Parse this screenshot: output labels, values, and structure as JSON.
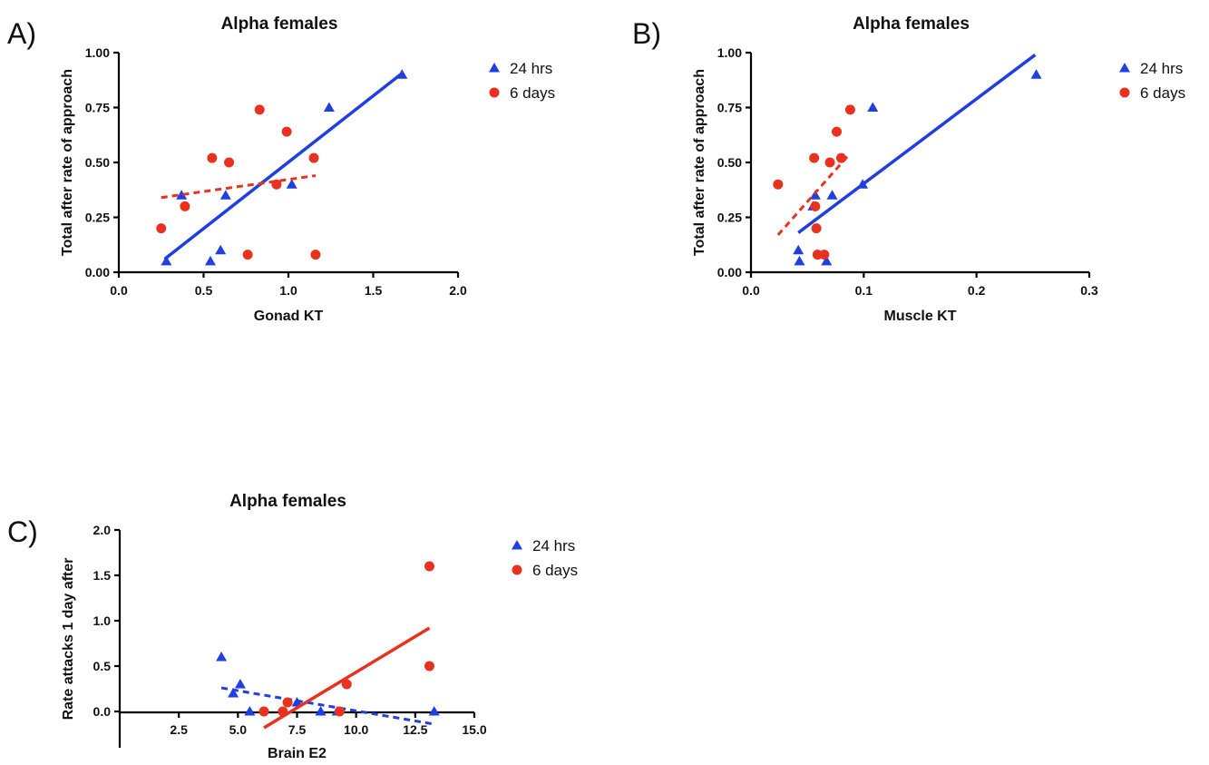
{
  "colors": {
    "series_24hrs": "#1f3fe0",
    "series_6days": "#e8311f",
    "axis": "#000000"
  },
  "chart_data": [
    {
      "panel_letter": "A)",
      "type": "scatter",
      "title": "Alpha females",
      "xlabel": "Gonad KT",
      "ylabel": "Total after rate of approach",
      "xlim": [
        0.0,
        2.0
      ],
      "ylim": [
        0.0,
        1.0
      ],
      "xticks": [
        0.0,
        0.5,
        1.0,
        1.5,
        2.0
      ],
      "xtick_labels": [
        "0.0",
        "0.5",
        "1.0",
        "1.5",
        "2.0"
      ],
      "yticks": [
        0.0,
        0.25,
        0.5,
        0.75,
        1.0
      ],
      "ytick_labels": [
        "0.00",
        "0.25",
        "0.50",
        "0.75",
        "1.00"
      ],
      "grid": false,
      "legend_position": "top-right",
      "series": [
        {
          "name": "24 hrs",
          "marker": "triangle",
          "color": "#1f3fe0",
          "points": [
            [
              0.28,
              0.05
            ],
            [
              0.37,
              0.35
            ],
            [
              0.54,
              0.05
            ],
            [
              0.6,
              0.1
            ],
            [
              0.63,
              0.35
            ],
            [
              1.02,
              0.4
            ],
            [
              1.24,
              0.75
            ],
            [
              1.67,
              0.9
            ]
          ],
          "fit": {
            "from": [
              0.27,
              0.06
            ],
            "to": [
              1.66,
              0.9
            ],
            "style": "solid"
          }
        },
        {
          "name": "6 days",
          "marker": "circle",
          "color": "#e8311f",
          "points": [
            [
              0.25,
              0.2
            ],
            [
              0.39,
              0.3
            ],
            [
              0.55,
              0.52
            ],
            [
              0.65,
              0.5
            ],
            [
              0.76,
              0.08
            ],
            [
              0.83,
              0.74
            ],
            [
              0.93,
              0.4
            ],
            [
              0.99,
              0.64
            ],
            [
              1.15,
              0.52
            ],
            [
              1.16,
              0.08
            ]
          ],
          "fit": {
            "from": [
              0.25,
              0.34
            ],
            "to": [
              1.16,
              0.44
            ],
            "style": "dashed"
          }
        }
      ]
    },
    {
      "panel_letter": "B)",
      "type": "scatter",
      "title": "Alpha females",
      "xlabel": "Muscle KT",
      "ylabel": "Total after rate of approach",
      "xlim": [
        0.0,
        0.3
      ],
      "ylim": [
        0.0,
        1.0
      ],
      "xticks": [
        0.0,
        0.1,
        0.2,
        0.3
      ],
      "xtick_labels": [
        "0.0",
        "0.1",
        "0.2",
        "0.3"
      ],
      "yticks": [
        0.0,
        0.25,
        0.5,
        0.75,
        1.0
      ],
      "ytick_labels": [
        "0.00",
        "0.25",
        "0.50",
        "0.75",
        "1.00"
      ],
      "grid": false,
      "legend_position": "top-right",
      "series": [
        {
          "name": "24 hrs",
          "marker": "triangle",
          "color": "#1f3fe0",
          "points": [
            [
              0.042,
              0.1
            ],
            [
              0.043,
              0.05
            ],
            [
              0.055,
              0.3
            ],
            [
              0.057,
              0.35
            ],
            [
              0.067,
              0.05
            ],
            [
              0.072,
              0.35
            ],
            [
              0.099,
              0.4
            ],
            [
              0.108,
              0.75
            ],
            [
              0.253,
              0.9
            ]
          ],
          "fit": {
            "from": [
              0.042,
              0.18
            ],
            "to": [
              0.252,
              0.99
            ],
            "style": "solid"
          }
        },
        {
          "name": "6 days",
          "marker": "circle",
          "color": "#e8311f",
          "points": [
            [
              0.024,
              0.4
            ],
            [
              0.056,
              0.52
            ],
            [
              0.057,
              0.3
            ],
            [
              0.058,
              0.2
            ],
            [
              0.059,
              0.08
            ],
            [
              0.065,
              0.08
            ],
            [
              0.07,
              0.5
            ],
            [
              0.076,
              0.64
            ],
            [
              0.08,
              0.52
            ],
            [
              0.088,
              0.74
            ]
          ],
          "fit": {
            "from": [
              0.024,
              0.17
            ],
            "to": [
              0.086,
              0.53
            ],
            "style": "dashed"
          }
        }
      ]
    },
    {
      "panel_letter": "C)",
      "type": "scatter",
      "title": "Alpha females",
      "xlabel": "Brain E2",
      "ylabel": "Rate attacks 1 day after",
      "xlim": [
        0.0,
        15.0
      ],
      "ylim": [
        -0.4,
        2.0
      ],
      "axis_origin": [
        0.0,
        0.0
      ],
      "xticks": [
        2.5,
        5.0,
        7.5,
        10.0,
        12.5,
        15.0
      ],
      "xtick_labels": [
        "2.5",
        "5.0",
        "7.5",
        "10.0",
        "12.5",
        "15.0"
      ],
      "yticks": [
        0.0,
        0.5,
        1.0,
        1.5,
        2.0
      ],
      "ytick_labels": [
        "0.0",
        "0.5",
        "1.0",
        "1.5",
        "2.0"
      ],
      "grid": false,
      "legend_position": "top-right",
      "series": [
        {
          "name": "24 hrs",
          "marker": "triangle",
          "color": "#1f3fe0",
          "points": [
            [
              4.3,
              0.6
            ],
            [
              4.8,
              0.2
            ],
            [
              5.1,
              0.3
            ],
            [
              5.5,
              0.0
            ],
            [
              7.5,
              0.1
            ],
            [
              8.5,
              0.0
            ],
            [
              9.2,
              0.0
            ],
            [
              13.3,
              0.0
            ]
          ],
          "fit": {
            "from": [
              4.3,
              0.26
            ],
            "to": [
              13.3,
              -0.14
            ],
            "style": "dashed"
          }
        },
        {
          "name": "6 days",
          "marker": "circle",
          "color": "#e8311f",
          "points": [
            [
              6.1,
              0.0
            ],
            [
              6.9,
              0.0
            ],
            [
              7.1,
              0.1
            ],
            [
              9.3,
              0.0
            ],
            [
              9.6,
              0.3
            ],
            [
              13.1,
              1.6
            ],
            [
              13.1,
              0.5
            ]
          ],
          "fit": {
            "from": [
              6.1,
              -0.18
            ],
            "to": [
              13.1,
              0.92
            ],
            "style": "solid"
          }
        }
      ]
    }
  ]
}
